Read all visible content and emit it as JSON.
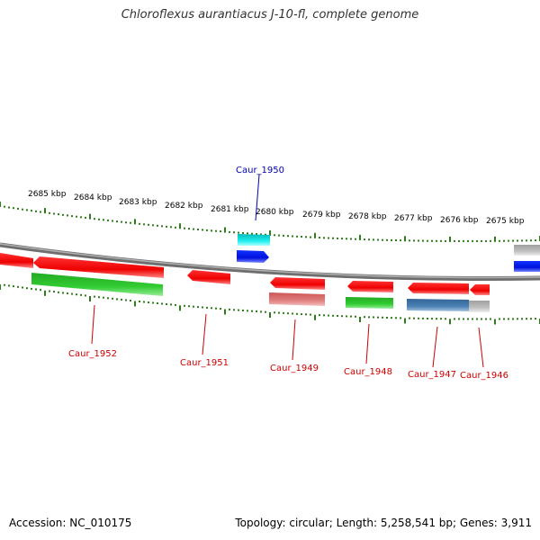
{
  "title": "Chloroflexus aurantiacus J-10-fl, complete genome",
  "footer": {
    "accession": "Accession: NC_010175",
    "topology": "Topology: circular; Length: 5,258,541 bp; Genes: 3,911"
  },
  "ticks": [
    "2685 kbp",
    "2684 kbp",
    "2683 kbp",
    "2682 kbp",
    "2681 kbp",
    "2680 kbp",
    "2679 kbp",
    "2678 kbp",
    "2677 kbp",
    "2676 kbp",
    "2675 kbp"
  ],
  "genes": [
    {
      "name": "Caur_1952",
      "color": "#cc0000"
    },
    {
      "name": "Caur_1951",
      "color": "#cc0000"
    },
    {
      "name": "Caur_1950",
      "color": "#0000aa"
    },
    {
      "name": "Caur_1949",
      "color": "#cc0000"
    },
    {
      "name": "Caur_1948",
      "color": "#cc0000"
    },
    {
      "name": "Caur_1947",
      "color": "#cc0000"
    },
    {
      "name": "Caur_1946",
      "color": "#cc0000"
    }
  ],
  "colors": {
    "backbone": "#8c8c8c",
    "tick": "#2e7d1a",
    "cds": "#ee1111",
    "cog_green": "#33bb33",
    "cog_blue": "#4477aa",
    "cog_pink": "#dd7777",
    "cog_cyan": "#11dddd",
    "cog_grey": "#bbbbbb",
    "forward_blue": "#0011ee"
  }
}
